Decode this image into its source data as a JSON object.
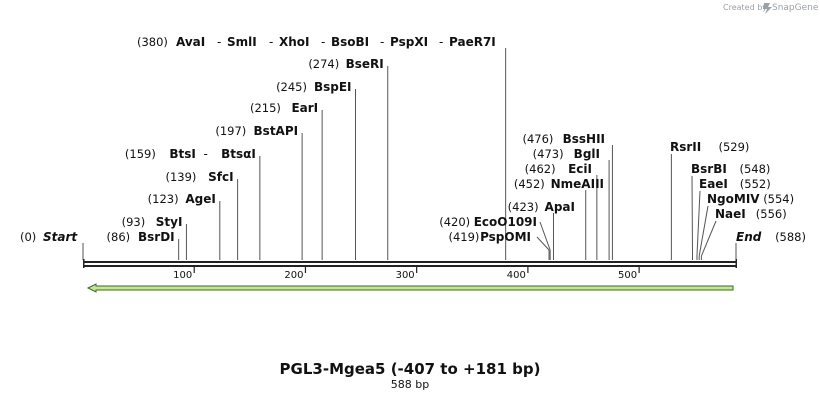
{
  "credit": {
    "prefix": "Created by",
    "brand": "SnapGene"
  },
  "sequence": {
    "title": "PGL3-Mgea5 (-407 to +181 bp)",
    "length_label": "588 bp",
    "length": 588
  },
  "ends": {
    "start": {
      "pos_label": "(0)",
      "name": "Start",
      "bp": 0
    },
    "end": {
      "name": "End",
      "pos_label": "(588)",
      "bp": 588
    }
  },
  "ticks": [
    {
      "bp": 100,
      "label": "100"
    },
    {
      "bp": 200,
      "label": "200"
    },
    {
      "bp": 300,
      "label": "300"
    },
    {
      "bp": 400,
      "label": "400"
    },
    {
      "bp": 500,
      "label": "500"
    }
  ],
  "sites_left": [
    {
      "pos_label": "(86)",
      "name": "BsrDI",
      "bp": 86
    },
    {
      "pos_label": "(93)",
      "name": "StyI",
      "bp": 93
    },
    {
      "pos_label": "(123)",
      "name": "AgeI",
      "bp": 123
    },
    {
      "pos_label": "(139)",
      "name": "SfcI",
      "bp": 139
    },
    {
      "pos_label": "(159)",
      "name": "BtsI",
      "name2": "BtsαI",
      "sep": "-",
      "bp": 159
    },
    {
      "pos_label": "(197)",
      "name": "BstAPI",
      "bp": 197
    },
    {
      "pos_label": "(215)",
      "name": "EarI",
      "bp": 215
    },
    {
      "pos_label": "(245)",
      "name": "BspEI",
      "bp": 245
    },
    {
      "pos_label": "(274)",
      "name": "BseRI",
      "bp": 274
    }
  ],
  "top_site": {
    "pos_label": "(380)",
    "names": [
      "AvaI",
      "SmlI",
      "XhoI",
      "BsoBI",
      "PspXI",
      "PaeR7I"
    ],
    "sep": "-",
    "bp": 380
  },
  "sites_mid": [
    {
      "pos_label": "(419)",
      "name": "PspOMI",
      "bp": 419
    },
    {
      "pos_label": "(420)",
      "name": "EcoO109I",
      "bp": 420
    },
    {
      "pos_label": "(423)",
      "name": "ApaI",
      "bp": 423
    },
    {
      "pos_label": "(452)",
      "name": "NmeAIII",
      "bp": 452
    },
    {
      "pos_label": "(462)",
      "name": "EciI",
      "bp": 462
    },
    {
      "pos_label": "(473)",
      "name": "BglI",
      "bp": 473
    },
    {
      "pos_label": "(476)",
      "name": "BssHII",
      "bp": 476
    }
  ],
  "sites_right": [
    {
      "name": "RsrII",
      "pos_label": "(529)",
      "bp": 529
    },
    {
      "name": "BsrBI",
      "pos_label": "(548)",
      "bp": 548
    },
    {
      "name": "EaeI",
      "pos_label": "(552)",
      "bp": 552
    },
    {
      "name": "NgoMIV",
      "pos_label": "(554)",
      "bp": 554
    },
    {
      "name": "NaeI",
      "pos_label": "(556)",
      "bp": 556
    }
  ],
  "feature": {
    "direction": "reverse",
    "fill": "#c5e59a",
    "stroke": "#3a6b1a"
  },
  "colors": {
    "backbone": "#222222",
    "site_line": "#555555"
  }
}
